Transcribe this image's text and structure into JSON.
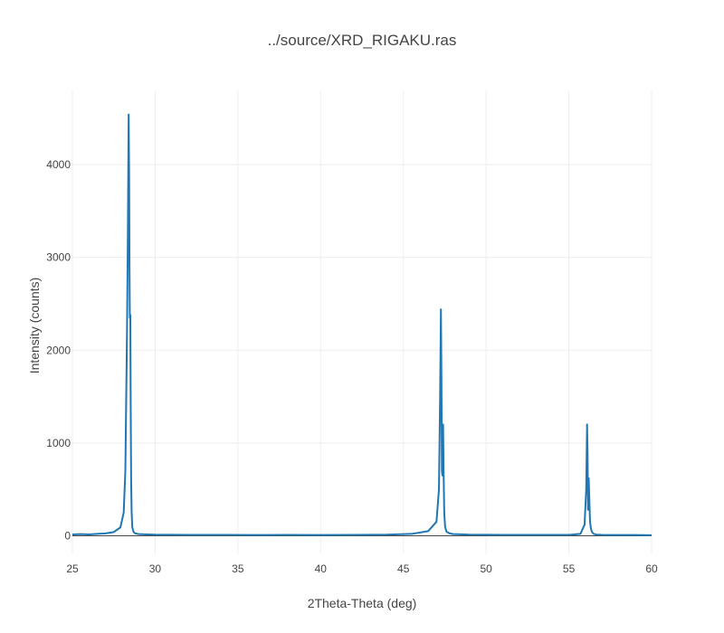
{
  "chart_data": {
    "type": "line",
    "title": "../source/XRD_RIGAKU.ras",
    "xlabel": "2Theta-Theta (deg)",
    "ylabel": "Intensity (counts)",
    "xlim": [
      25,
      60
    ],
    "ylim": [
      -200,
      4800
    ],
    "x_ticks": [
      25,
      30,
      35,
      40,
      45,
      50,
      55,
      60
    ],
    "y_ticks": [
      0,
      1000,
      2000,
      3000,
      4000
    ],
    "grid": true,
    "legend": "none",
    "line_color": "#1f77b4",
    "series": [
      {
        "x": [
          25.0,
          25.5,
          26.0,
          26.5,
          27.0,
          27.5,
          27.9,
          28.1,
          28.2,
          28.3,
          28.35,
          28.4,
          28.43,
          28.45,
          28.47,
          28.5,
          28.52,
          28.55,
          28.58,
          28.62,
          28.7,
          28.8,
          29.0,
          29.5,
          30.0,
          32.0,
          34.0,
          36.0,
          38.0,
          40.0,
          42.0,
          44.0,
          45.5,
          46.5,
          47.0,
          47.15,
          47.22,
          47.27,
          47.3,
          47.33,
          47.36,
          47.4,
          47.43,
          47.47,
          47.52,
          47.6,
          47.8,
          48.0,
          49.0,
          51.0,
          53.0,
          55.0,
          55.7,
          55.95,
          56.05,
          56.1,
          56.13,
          56.16,
          56.2,
          56.24,
          56.28,
          56.33,
          56.4,
          56.5,
          56.7,
          57.0,
          58.0,
          59.0,
          60.0
        ],
        "y": [
          15,
          18,
          14,
          20,
          25,
          40,
          90,
          250,
          700,
          2200,
          3200,
          4540,
          3850,
          2900,
          2350,
          2380,
          1500,
          600,
          250,
          90,
          40,
          25,
          18,
          15,
          12,
          10,
          10,
          8,
          9,
          8,
          10,
          12,
          20,
          50,
          150,
          500,
          1500,
          2440,
          1700,
          700,
          650,
          1200,
          700,
          250,
          100,
          45,
          25,
          18,
          12,
          10,
          9,
          10,
          20,
          120,
          500,
          1200,
          900,
          280,
          620,
          380,
          150,
          80,
          40,
          20,
          12,
          10,
          8,
          8,
          6
        ]
      }
    ]
  }
}
